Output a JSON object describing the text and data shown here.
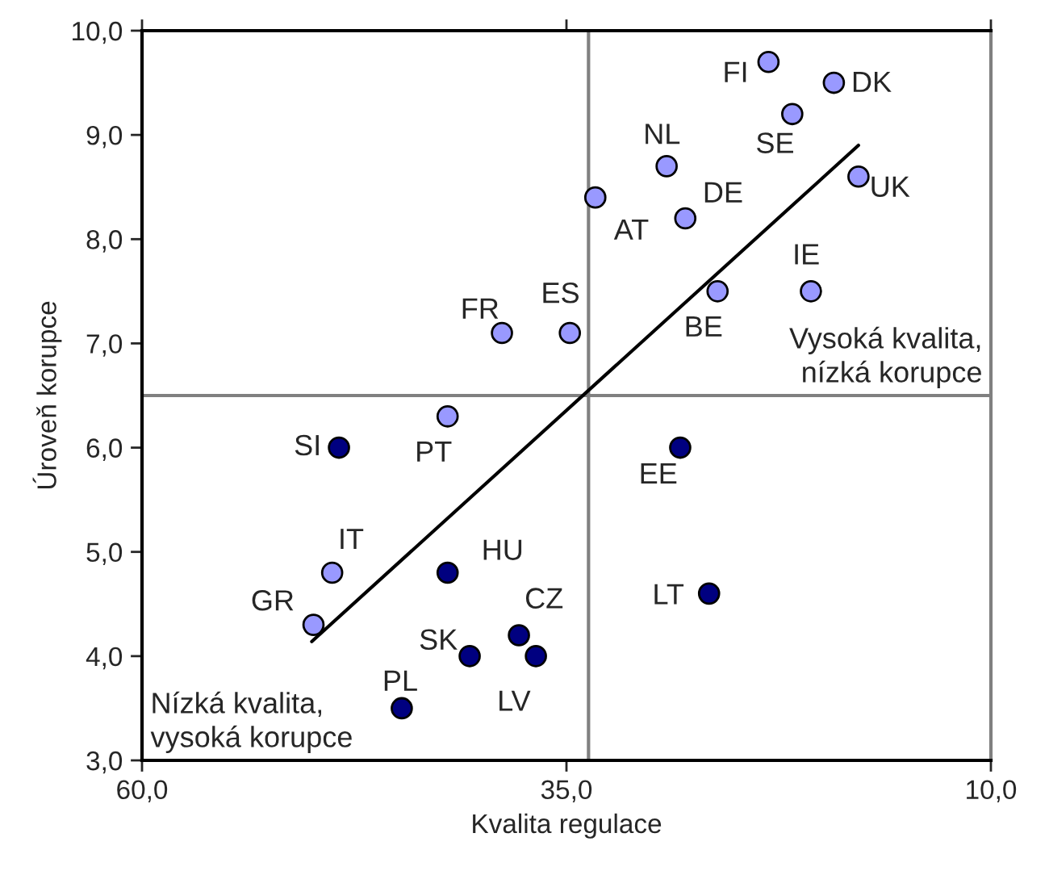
{
  "chart_data": {
    "type": "scatter",
    "xlabel": "Kvalita regulace",
    "ylabel": "Úroveň korupce",
    "xlim": [
      60,
      10
    ],
    "ylim": [
      3,
      10
    ],
    "xticks": [
      {
        "value": 60,
        "label": "60,0"
      },
      {
        "value": 35,
        "label": "35,0"
      },
      {
        "value": 10,
        "label": "10,0"
      }
    ],
    "yticks": [
      {
        "value": 3,
        "label": "3,0"
      },
      {
        "value": 4,
        "label": "4,0"
      },
      {
        "value": 5,
        "label": "5,0"
      },
      {
        "value": 6,
        "label": "6,0"
      },
      {
        "value": 7,
        "label": "7,0"
      },
      {
        "value": 8,
        "label": "8,0"
      },
      {
        "value": 9,
        "label": "9,0"
      },
      {
        "value": 10,
        "label": "10,0"
      }
    ],
    "grid": false,
    "legend": false,
    "marker": "circle",
    "series": [
      {
        "color": "#9999ff",
        "x": [
          38.8,
          34.8,
          42.0,
          33.3,
          29.1,
          28.0,
          23.1,
          21.7,
          19.25,
          17.8,
          26.1,
          20.6,
          48.8,
          49.9
        ],
        "values": [
          7.1,
          7.1,
          6.3,
          8.4,
          8.7,
          8.2,
          9.7,
          9.2,
          9.5,
          8.6,
          7.5,
          7.5,
          4.8,
          4.3
        ]
      },
      {
        "color": "#000080",
        "x": [
          48.4,
          42.0,
          40.7,
          37.8,
          36.8,
          44.7,
          28.3,
          26.6
        ],
        "values": [
          6.0,
          4.8,
          4.0,
          4.2,
          4.0,
          3.5,
          6.0,
          4.6
        ]
      },
      {
        "type": "line",
        "color": "#000000",
        "marker": "none",
        "line_style": "solid",
        "x": [
          50.0,
          17.8
        ],
        "values": [
          4.14,
          8.9
        ]
      }
    ],
    "ref_lines": [
      {
        "axis": "x",
        "value": 33.7,
        "color": "#808080"
      },
      {
        "axis": "y",
        "value": 6.5,
        "color": "#808080"
      }
    ],
    "annotations": [
      {
        "text": "FR",
        "x": 38.8,
        "y": 7.1
      },
      {
        "text": "ES",
        "x": 34.8,
        "y": 7.1
      },
      {
        "text": "PT",
        "x": 42.0,
        "y": 6.3
      },
      {
        "text": "AT",
        "x": 33.3,
        "y": 8.4
      },
      {
        "text": "NL",
        "x": 29.1,
        "y": 8.7
      },
      {
        "text": "DE",
        "x": 28.0,
        "y": 8.2
      },
      {
        "text": "FI",
        "x": 23.1,
        "y": 9.7
      },
      {
        "text": "SE",
        "x": 21.7,
        "y": 9.2
      },
      {
        "text": "DK",
        "x": 19.25,
        "y": 9.5
      },
      {
        "text": "UK",
        "x": 17.8,
        "y": 8.6
      },
      {
        "text": "BE",
        "x": 26.1,
        "y": 7.5
      },
      {
        "text": "IE",
        "x": 20.6,
        "y": 7.5
      },
      {
        "text": "IT",
        "x": 48.8,
        "y": 4.8
      },
      {
        "text": "GR",
        "x": 49.9,
        "y": 4.3
      },
      {
        "text": "SI",
        "x": 48.4,
        "y": 6.0
      },
      {
        "text": "HU",
        "x": 42.0,
        "y": 4.8
      },
      {
        "text": "SK",
        "x": 40.7,
        "y": 4.0
      },
      {
        "text": "CZ",
        "x": 37.8,
        "y": 4.2
      },
      {
        "text": "LV",
        "x": 36.8,
        "y": 4.0
      },
      {
        "text": "PL",
        "x": 44.7,
        "y": 3.5
      },
      {
        "text": "EE",
        "x": 28.3,
        "y": 6.0
      },
      {
        "text": "LT",
        "x": 26.6,
        "y": 4.6
      },
      "Vysoká kvalita,\nnízká korupce",
      "Nízká kvalita,\nvysoká korupce"
    ]
  }
}
